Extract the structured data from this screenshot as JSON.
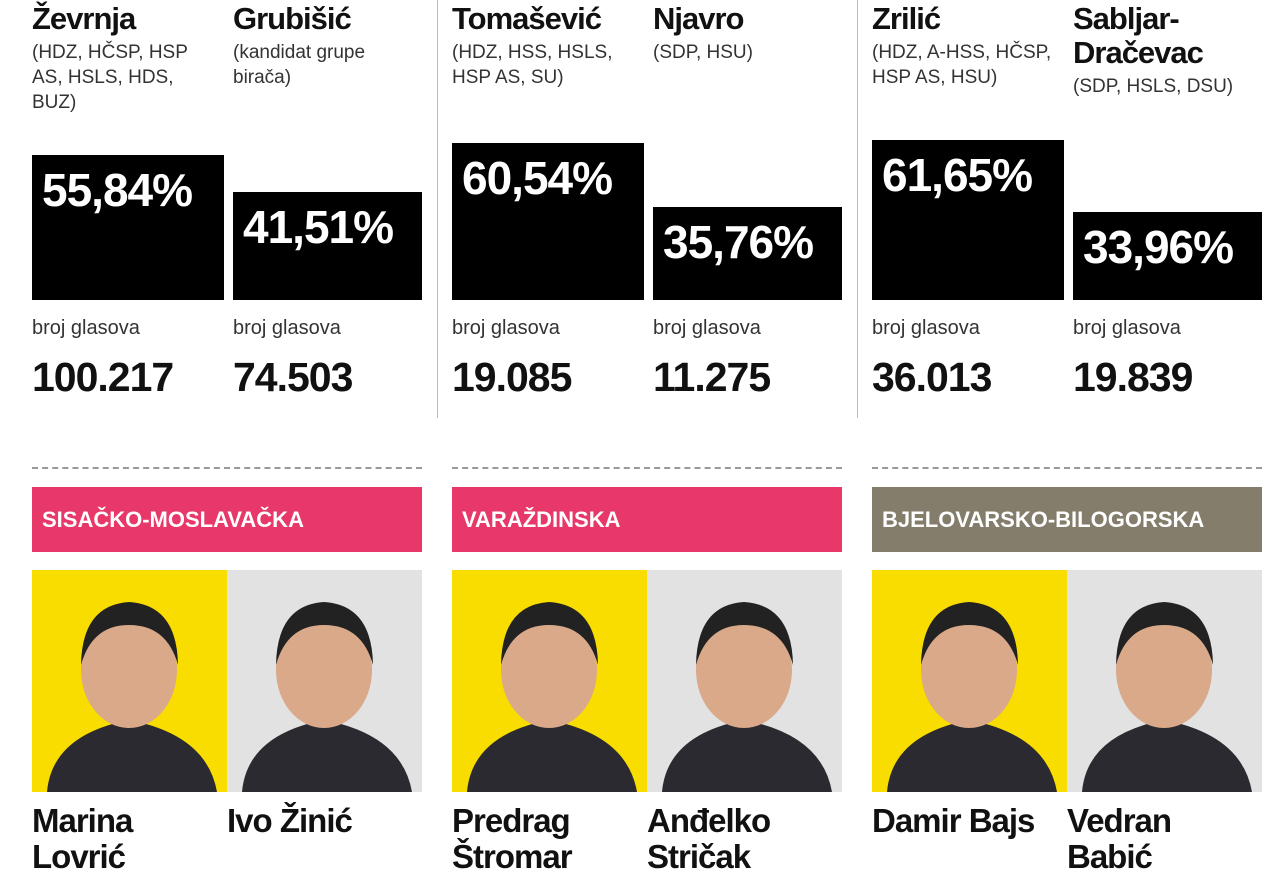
{
  "top": {
    "races": [
      {
        "candidates": [
          {
            "name": "Ževrnja",
            "party": "(HDZ, HČSP, HSP AS, HSLS, HDS, BUZ)",
            "pct": 55.84,
            "pct_label": "55,84%",
            "votes_caption": "broj glasova",
            "votes": "100.217"
          },
          {
            "name": "Grubišić",
            "party": "(kandidat grupe birača)",
            "pct": 41.51,
            "pct_label": "41,51%",
            "votes_caption": "broj glasova",
            "votes": "74.503"
          }
        ]
      },
      {
        "candidates": [
          {
            "name": "Tomašević",
            "party": "(HDZ, HSS, HSLS, HSP AS, SU)",
            "pct": 60.54,
            "pct_label": "60,54%",
            "votes_caption": "broj glasova",
            "votes": "19.085"
          },
          {
            "name": "Njavro",
            "party": "(SDP, HSU)",
            "pct": 35.76,
            "pct_label": "35,76%",
            "votes_caption": "broj glasova",
            "votes": "11.275"
          }
        ]
      },
      {
        "candidates": [
          {
            "name": "Zrilić",
            "party": "(HDZ, A-HSS, HČSP, HSP AS, HSU)",
            "pct": 61.65,
            "pct_label": "61,65%",
            "votes_caption": "broj glasova",
            "votes": "36.013"
          },
          {
            "name": "Sabljar-Dračevac",
            "party": "(SDP, HSLS, DSU)",
            "pct": 33.96,
            "pct_label": "33,96%",
            "votes_caption": "broj glasova",
            "votes": "19.839"
          }
        ]
      }
    ]
  },
  "bottom": {
    "regions": [
      {
        "name": "SISAČKO-MOSLAVAČKA",
        "color": "#e8386a",
        "candidates": [
          "Marina Lovrić",
          "Ivo Žinić"
        ]
      },
      {
        "name": "VARAŽDINSKA",
        "color": "#e8386a",
        "candidates": [
          "Predrag Štromar",
          "Anđelko Stričak"
        ]
      },
      {
        "name": "BJELOVARSKO-BILOGORSKA",
        "color": "#857d6c",
        "candidates": [
          "Damir Bajs",
          "Vedran Babić"
        ]
      }
    ]
  }
}
